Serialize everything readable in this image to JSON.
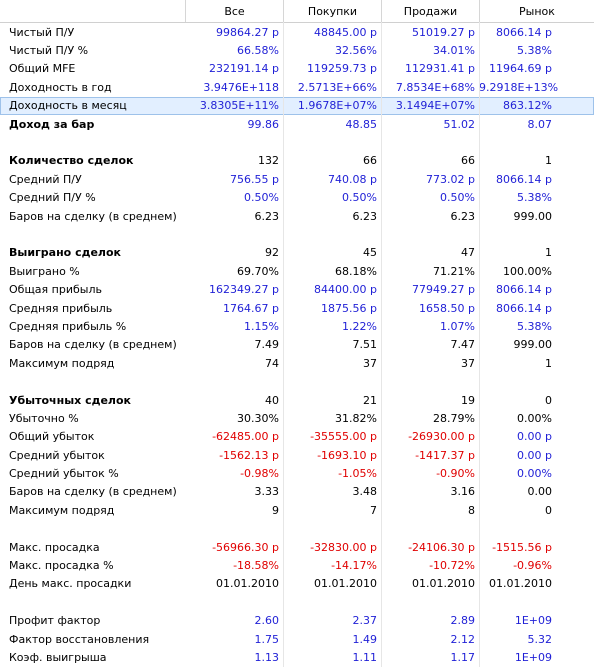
{
  "header": {
    "columns": [
      "Все",
      "Покупки",
      "Продажи",
      "Рынок"
    ]
  },
  "rows": [
    {
      "label": "Чистый П/У",
      "values": [
        "99864.27 р",
        "48845.00 р",
        "51019.27 р",
        "8066.14 р"
      ],
      "colors": [
        "blue",
        "blue",
        "blue",
        "blue"
      ]
    },
    {
      "label": "Чистый П/У %",
      "values": [
        "66.58%",
        "32.56%",
        "34.01%",
        "5.38%"
      ],
      "colors": [
        "blue",
        "blue",
        "blue",
        "blue"
      ]
    },
    {
      "label": "Общий MFE",
      "values": [
        "232191.14 р",
        "119259.73 р",
        "112931.41 р",
        "11964.69 р"
      ],
      "colors": [
        "blue",
        "blue",
        "blue",
        "blue"
      ]
    },
    {
      "label": "Доходность в год",
      "values": [
        "3.9476E+118",
        "2.5713E+66%",
        "7.8534E+68%",
        "9.2918E+13%"
      ],
      "colors": [
        "blue",
        "blue",
        "blue",
        "blue"
      ]
    },
    {
      "label": "Доходность в месяц",
      "values": [
        "3.8305E+11%",
        "1.9678E+07%",
        "3.1494E+07%",
        "863.12%"
      ],
      "colors": [
        "blue",
        "blue",
        "blue",
        "blue"
      ],
      "selected": true
    },
    {
      "label": "Доход за бар",
      "values": [
        "99.86",
        "48.85",
        "51.02",
        "8.07"
      ],
      "colors": [
        "blue",
        "blue",
        "blue",
        "blue"
      ],
      "bold": true
    },
    {
      "label": "",
      "values": [
        "",
        "",
        "",
        ""
      ],
      "colors": [
        "black",
        "black",
        "black",
        "black"
      ]
    },
    {
      "label": "Количество сделок",
      "values": [
        "132",
        "66",
        "66",
        "1"
      ],
      "colors": [
        "black",
        "black",
        "black",
        "black"
      ],
      "bold": true
    },
    {
      "label": "Средний П/У",
      "values": [
        "756.55 р",
        "740.08 р",
        "773.02 р",
        "8066.14 р"
      ],
      "colors": [
        "blue",
        "blue",
        "blue",
        "blue"
      ]
    },
    {
      "label": "Средний П/У %",
      "values": [
        "0.50%",
        "0.50%",
        "0.50%",
        "5.38%"
      ],
      "colors": [
        "blue",
        "blue",
        "blue",
        "blue"
      ]
    },
    {
      "label": "Баров на сделку (в среднем)",
      "values": [
        "6.23",
        "6.23",
        "6.23",
        "999.00"
      ],
      "colors": [
        "black",
        "black",
        "black",
        "black"
      ]
    },
    {
      "label": "",
      "values": [
        "",
        "",
        "",
        ""
      ],
      "colors": [
        "black",
        "black",
        "black",
        "black"
      ]
    },
    {
      "label": "Выиграно сделок",
      "values": [
        "92",
        "45",
        "47",
        "1"
      ],
      "colors": [
        "black",
        "black",
        "black",
        "black"
      ],
      "bold": true
    },
    {
      "label": "Выиграно %",
      "values": [
        "69.70%",
        "68.18%",
        "71.21%",
        "100.00%"
      ],
      "colors": [
        "black",
        "black",
        "black",
        "black"
      ]
    },
    {
      "label": "Общая прибыль",
      "values": [
        "162349.27 р",
        "84400.00 р",
        "77949.27 р",
        "8066.14 р"
      ],
      "colors": [
        "blue",
        "blue",
        "blue",
        "blue"
      ]
    },
    {
      "label": "Средняя прибыль",
      "values": [
        "1764.67 р",
        "1875.56 р",
        "1658.50 р",
        "8066.14 р"
      ],
      "colors": [
        "blue",
        "blue",
        "blue",
        "blue"
      ]
    },
    {
      "label": "Средняя прибыль %",
      "values": [
        "1.15%",
        "1.22%",
        "1.07%",
        "5.38%"
      ],
      "colors": [
        "blue",
        "blue",
        "blue",
        "blue"
      ]
    },
    {
      "label": "Баров на сделку (в среднем)",
      "values": [
        "7.49",
        "7.51",
        "7.47",
        "999.00"
      ],
      "colors": [
        "black",
        "black",
        "black",
        "black"
      ]
    },
    {
      "label": "Максимум подряд",
      "values": [
        "74",
        "37",
        "37",
        "1"
      ],
      "colors": [
        "black",
        "black",
        "black",
        "black"
      ]
    },
    {
      "label": "",
      "values": [
        "",
        "",
        "",
        ""
      ],
      "colors": [
        "black",
        "black",
        "black",
        "black"
      ]
    },
    {
      "label": "Убыточных сделок",
      "values": [
        "40",
        "21",
        "19",
        "0"
      ],
      "colors": [
        "black",
        "black",
        "black",
        "black"
      ],
      "bold": true
    },
    {
      "label": "Убыточно %",
      "values": [
        "30.30%",
        "31.82%",
        "28.79%",
        "0.00%"
      ],
      "colors": [
        "black",
        "black",
        "black",
        "black"
      ]
    },
    {
      "label": "Общий убыток",
      "values": [
        "-62485.00 р",
        "-35555.00 р",
        "-26930.00 р",
        "0.00 р"
      ],
      "colors": [
        "red",
        "red",
        "red",
        "blue"
      ]
    },
    {
      "label": "Средний убыток",
      "values": [
        "-1562.13 р",
        "-1693.10 р",
        "-1417.37 р",
        "0.00 р"
      ],
      "colors": [
        "red",
        "red",
        "red",
        "blue"
      ]
    },
    {
      "label": "Средний убыток %",
      "values": [
        "-0.98%",
        "-1.05%",
        "-0.90%",
        "0.00%"
      ],
      "colors": [
        "red",
        "red",
        "red",
        "blue"
      ]
    },
    {
      "label": "Баров на сделку (в среднем)",
      "values": [
        "3.33",
        "3.48",
        "3.16",
        "0.00"
      ],
      "colors": [
        "black",
        "black",
        "black",
        "black"
      ]
    },
    {
      "label": "Максимум подряд",
      "values": [
        "9",
        "7",
        "8",
        "0"
      ],
      "colors": [
        "black",
        "black",
        "black",
        "black"
      ]
    },
    {
      "label": "",
      "values": [
        "",
        "",
        "",
        ""
      ],
      "colors": [
        "black",
        "black",
        "black",
        "black"
      ]
    },
    {
      "label": "Макс. просадка",
      "values": [
        "-56966.30 р",
        "-32830.00 р",
        "-24106.30 р",
        "-1515.56 р"
      ],
      "colors": [
        "red",
        "red",
        "red",
        "red"
      ]
    },
    {
      "label": "Макс. просадка %",
      "values": [
        "-18.58%",
        "-14.17%",
        "-10.72%",
        "-0.96%"
      ],
      "colors": [
        "red",
        "red",
        "red",
        "red"
      ]
    },
    {
      "label": "День макс. просадки",
      "values": [
        "01.01.2010",
        "01.01.2010",
        "01.01.2010",
        "01.01.2010"
      ],
      "colors": [
        "black",
        "black",
        "black",
        "black"
      ]
    },
    {
      "label": "",
      "values": [
        "",
        "",
        "",
        ""
      ],
      "colors": [
        "black",
        "black",
        "black",
        "black"
      ]
    },
    {
      "label": "Профит фактор",
      "values": [
        "2.60",
        "2.37",
        "2.89",
        "1E+09"
      ],
      "colors": [
        "blue",
        "blue",
        "blue",
        "blue"
      ]
    },
    {
      "label": "Фактор восстановления",
      "values": [
        "1.75",
        "1.49",
        "2.12",
        "5.32"
      ],
      "colors": [
        "blue",
        "blue",
        "blue",
        "blue"
      ]
    },
    {
      "label": "Коэф. выигрыша",
      "values": [
        "1.13",
        "1.11",
        "1.17",
        "1E+09"
      ],
      "colors": [
        "blue",
        "blue",
        "blue",
        "blue"
      ]
    }
  ]
}
